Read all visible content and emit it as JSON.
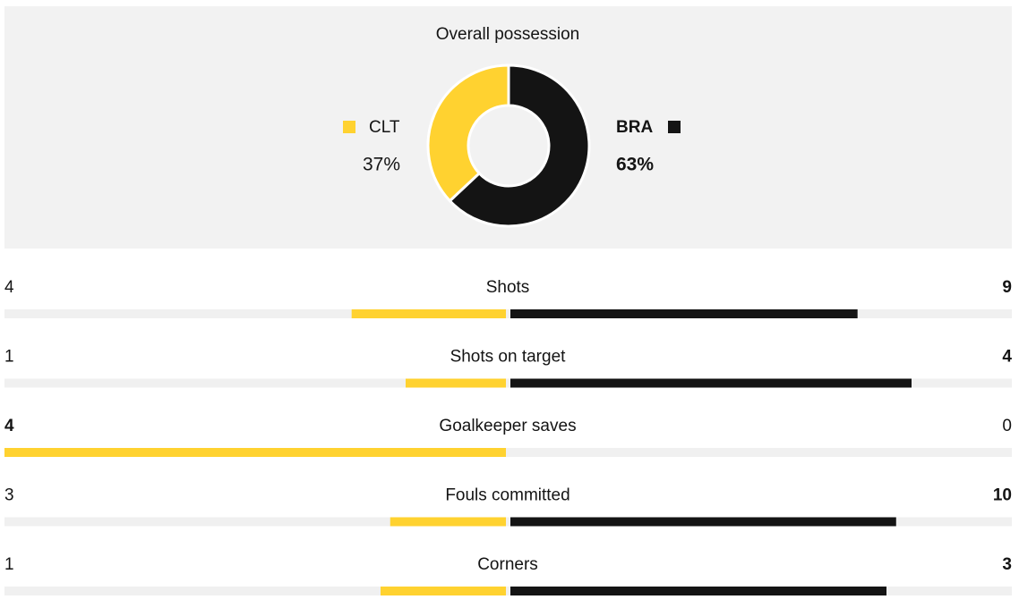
{
  "possession": {
    "title": "Overall possession",
    "teams": [
      {
        "name": "CLT",
        "value": 37,
        "value_label": "37%",
        "color": "#ffd230"
      },
      {
        "name": "BRA",
        "value": 63,
        "value_label": "63%",
        "color": "#141414"
      }
    ]
  },
  "stats": [
    {
      "label": "Shots",
      "home": 4,
      "away": 9
    },
    {
      "label": "Shots on target",
      "home": 1,
      "away": 4
    },
    {
      "label": "Goalkeeper saves",
      "home": 4,
      "away": 0
    },
    {
      "label": "Fouls committed",
      "home": 3,
      "away": 10
    },
    {
      "label": "Corners",
      "home": 1,
      "away": 3
    }
  ]
}
